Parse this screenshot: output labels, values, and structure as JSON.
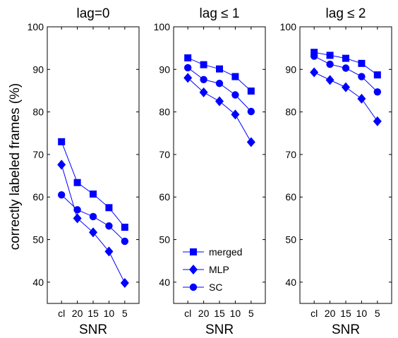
{
  "figure": {
    "ylabel": "correctly labeled frames (%)"
  },
  "chart_data": [
    {
      "type": "line",
      "title": "lag=0",
      "xlabel": "SNR",
      "ylabel": "correctly labeled frames (%)",
      "categories": [
        "cl",
        "20",
        "15",
        "10",
        "5"
      ],
      "ylim": [
        35,
        100
      ],
      "yticks": [
        40,
        50,
        60,
        70,
        80,
        90,
        100
      ],
      "grid": false,
      "series": [
        {
          "name": "merged",
          "marker": "square",
          "values": [
            73.0,
            63.4,
            60.7,
            57.5,
            52.9
          ]
        },
        {
          "name": "MLP",
          "marker": "diamond",
          "values": [
            67.6,
            55.0,
            51.7,
            47.2,
            39.8
          ]
        },
        {
          "name": "SC",
          "marker": "circle",
          "values": [
            60.5,
            57.0,
            55.4,
            53.2,
            49.6
          ]
        }
      ]
    },
    {
      "type": "line",
      "title": "lag ≤ 1",
      "xlabel": "SNR",
      "categories": [
        "cl",
        "20",
        "15",
        "10",
        "5"
      ],
      "ylim": [
        35,
        100
      ],
      "yticks": [
        40,
        50,
        60,
        70,
        80,
        90,
        100
      ],
      "grid": false,
      "legend": {
        "placement": "bottom-left",
        "entries": [
          "merged",
          "MLP",
          "SC"
        ]
      },
      "series": [
        {
          "name": "merged",
          "marker": "square",
          "values": [
            92.7,
            91.1,
            90.1,
            88.3,
            84.9
          ]
        },
        {
          "name": "MLP",
          "marker": "diamond",
          "values": [
            88.0,
            84.6,
            82.5,
            79.4,
            72.9
          ]
        },
        {
          "name": "SC",
          "marker": "circle",
          "values": [
            90.4,
            87.6,
            86.7,
            84.0,
            80.1
          ]
        }
      ]
    },
    {
      "type": "line",
      "title": "lag ≤ 2",
      "xlabel": "SNR",
      "categories": [
        "cl",
        "20",
        "15",
        "10",
        "5"
      ],
      "ylim": [
        35,
        100
      ],
      "yticks": [
        40,
        50,
        60,
        70,
        80,
        90,
        100
      ],
      "grid": false,
      "series": [
        {
          "name": "merged",
          "marker": "square",
          "values": [
            94.0,
            93.3,
            92.6,
            91.4,
            88.7
          ]
        },
        {
          "name": "MLP",
          "marker": "diamond",
          "values": [
            89.3,
            87.5,
            85.8,
            83.1,
            77.8
          ]
        },
        {
          "name": "SC",
          "marker": "circle",
          "values": [
            93.1,
            91.2,
            90.3,
            88.3,
            84.7
          ]
        }
      ]
    }
  ],
  "colors": {
    "line": "#0000ff",
    "axis": "#000000",
    "background": "#ffffff"
  }
}
